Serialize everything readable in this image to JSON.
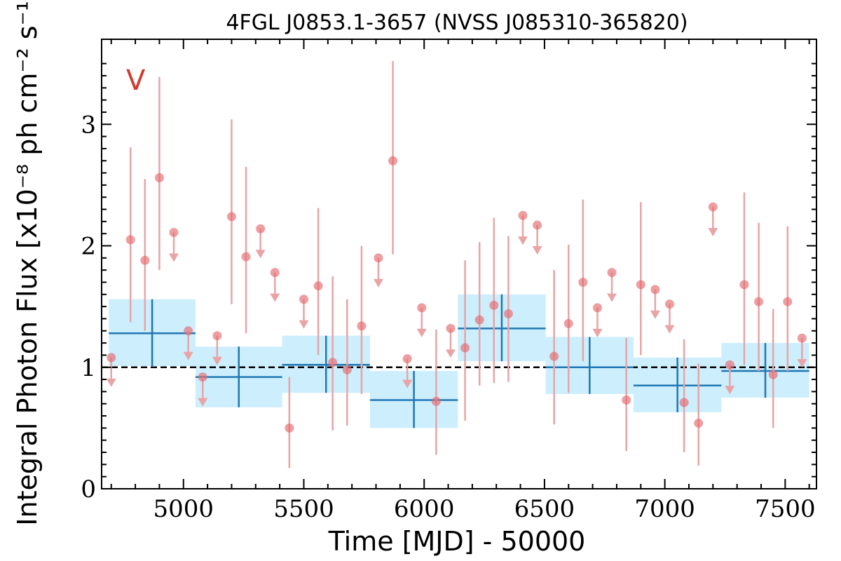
{
  "chart_data": {
    "type": "scatter",
    "title": "4FGL J0853.1-3657 (NVSS J085310-365820)",
    "xlabel": "Time [MJD] - 50000",
    "ylabel": "Integral Photon Flux [x10⁻⁸ ph cm⁻² s⁻¹]",
    "xlim": [
      4660,
      7630
    ],
    "ylim": [
      0,
      3.7
    ],
    "xticks": [
      5000,
      5500,
      6000,
      6500,
      7000,
      7500
    ],
    "yticks": [
      0,
      1,
      2,
      3
    ],
    "corner_label": "V",
    "mean_flux": 1.0,
    "colors": {
      "points": "#e36a6e",
      "points_errorbar": "#e8a4a6",
      "binned": "#1f77b4",
      "binned_band": "#cdeefc",
      "mean_line": "#000000",
      "corner_label": "#d23a2c"
    },
    "points": [
      {
        "x": 4700,
        "y": 1.08,
        "upper_limit": true
      },
      {
        "x": 4780,
        "y": 2.05,
        "lo": 1.37,
        "hi": 2.81
      },
      {
        "x": 4840,
        "y": 1.88,
        "lo": 1.3,
        "hi": 2.55
      },
      {
        "x": 4900,
        "y": 2.56,
        "lo": 1.8,
        "hi": 3.39
      },
      {
        "x": 4960,
        "y": 2.11,
        "upper_limit": true
      },
      {
        "x": 5020,
        "y": 1.3,
        "upper_limit": true
      },
      {
        "x": 5080,
        "y": 0.92,
        "upper_limit": true
      },
      {
        "x": 5140,
        "y": 1.26,
        "upper_limit": true
      },
      {
        "x": 5200,
        "y": 2.24,
        "lo": 1.52,
        "hi": 3.04
      },
      {
        "x": 5260,
        "y": 1.91,
        "lo": 1.28,
        "hi": 2.65
      },
      {
        "x": 5320,
        "y": 2.14,
        "upper_limit": true
      },
      {
        "x": 5380,
        "y": 1.78,
        "upper_limit": true
      },
      {
        "x": 5440,
        "y": 0.5,
        "lo": 0.17,
        "hi": 0.92
      },
      {
        "x": 5500,
        "y": 1.56,
        "upper_limit": true
      },
      {
        "x": 5560,
        "y": 1.67,
        "lo": 1.1,
        "hi": 2.31
      },
      {
        "x": 5620,
        "y": 1.04,
        "lo": 0.48,
        "hi": 1.75
      },
      {
        "x": 5680,
        "y": 0.98,
        "lo": 0.52,
        "hi": 1.56
      },
      {
        "x": 5740,
        "y": 1.34,
        "lo": 0.78,
        "hi": 2.0
      },
      {
        "x": 5810,
        "y": 1.9,
        "upper_limit": true
      },
      {
        "x": 5870,
        "y": 2.7,
        "lo": 1.93,
        "hi": 3.52
      },
      {
        "x": 5930,
        "y": 1.07,
        "upper_limit": true
      },
      {
        "x": 5990,
        "y": 1.49,
        "upper_limit": true
      },
      {
        "x": 6050,
        "y": 0.72,
        "lo": 0.28,
        "hi": 1.31
      },
      {
        "x": 6110,
        "y": 1.32,
        "upper_limit": true
      },
      {
        "x": 6170,
        "y": 1.16,
        "lo": 0.56,
        "hi": 1.88
      },
      {
        "x": 6230,
        "y": 1.39,
        "lo": 0.85,
        "hi": 2.03
      },
      {
        "x": 6290,
        "y": 1.51,
        "lo": 0.87,
        "hi": 2.23
      },
      {
        "x": 6350,
        "y": 1.44,
        "lo": 0.88,
        "hi": 2.08
      },
      {
        "x": 6410,
        "y": 2.25,
        "upper_limit": true
      },
      {
        "x": 6470,
        "y": 2.17,
        "upper_limit": true
      },
      {
        "x": 6540,
        "y": 1.09,
        "lo": 0.53,
        "hi": 1.8
      },
      {
        "x": 6600,
        "y": 1.36,
        "lo": 0.79,
        "hi": 2.01
      },
      {
        "x": 6660,
        "y": 1.7,
        "lo": 1.05,
        "hi": 2.38
      },
      {
        "x": 6720,
        "y": 1.49,
        "upper_limit": true
      },
      {
        "x": 6780,
        "y": 1.78,
        "upper_limit": true
      },
      {
        "x": 6840,
        "y": 0.73,
        "lo": 0.31,
        "hi": 1.24
      },
      {
        "x": 6900,
        "y": 1.68,
        "lo": 1.1,
        "hi": 2.36
      },
      {
        "x": 6960,
        "y": 1.64,
        "upper_limit": true
      },
      {
        "x": 7020,
        "y": 1.52,
        "upper_limit": true
      },
      {
        "x": 7080,
        "y": 0.71,
        "lo": 0.3,
        "hi": 1.23
      },
      {
        "x": 7140,
        "y": 0.54,
        "lo": 0.19,
        "hi": 1.03
      },
      {
        "x": 7200,
        "y": 2.32,
        "upper_limit": true
      },
      {
        "x": 7270,
        "y": 1.02,
        "upper_limit": true
      },
      {
        "x": 7330,
        "y": 1.68,
        "lo": 1.02,
        "hi": 2.44
      },
      {
        "x": 7390,
        "y": 1.54,
        "lo": 0.97,
        "hi": 2.19
      },
      {
        "x": 7450,
        "y": 0.94,
        "lo": 0.5,
        "hi": 1.48
      },
      {
        "x": 7510,
        "y": 1.54,
        "lo": 0.97,
        "hi": 2.16
      },
      {
        "x": 7570,
        "y": 1.24,
        "upper_limit": true
      }
    ],
    "binned": [
      {
        "x0": 4690,
        "x1": 5050,
        "y": 1.28,
        "lo": 1.01,
        "hi": 1.56
      },
      {
        "x0": 5050,
        "x1": 5410,
        "y": 0.92,
        "lo": 0.67,
        "hi": 1.17
      },
      {
        "x0": 5410,
        "x1": 5775,
        "y": 1.02,
        "lo": 0.79,
        "hi": 1.26
      },
      {
        "x0": 5775,
        "x1": 6140,
        "y": 0.73,
        "lo": 0.5,
        "hi": 0.97
      },
      {
        "x0": 6140,
        "x1": 6505,
        "y": 1.32,
        "lo": 1.05,
        "hi": 1.6
      },
      {
        "x0": 6505,
        "x1": 6870,
        "y": 1.0,
        "lo": 0.78,
        "hi": 1.25
      },
      {
        "x0": 6870,
        "x1": 7235,
        "y": 0.85,
        "lo": 0.63,
        "hi": 1.08
      },
      {
        "x0": 7235,
        "x1": 7600,
        "y": 0.97,
        "lo": 0.75,
        "hi": 1.2
      }
    ]
  }
}
